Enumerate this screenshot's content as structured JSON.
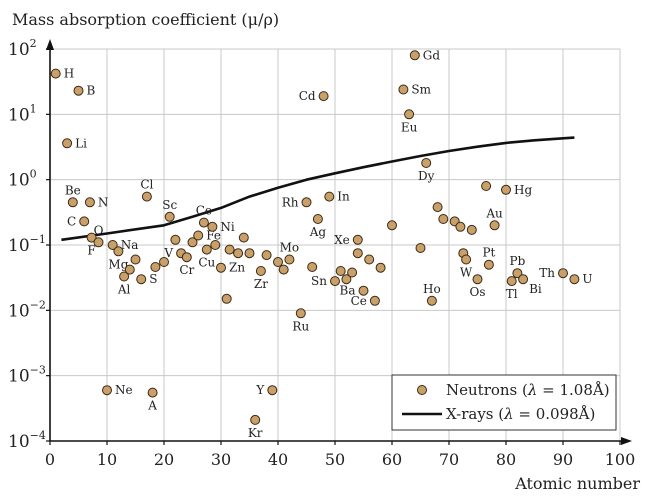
{
  "chart_data": {
    "type": "scatter",
    "title": "Mass absorption coefficient (μ/ρ)",
    "xlabel": "Atomic number",
    "ylabel": "Mass absorption coefficient (μ/ρ)",
    "xlim": [
      0,
      100
    ],
    "ylim": [
      0.0001,
      100
    ],
    "yscale": "log",
    "grid": true,
    "x_ticks": [
      0,
      10,
      20,
      30,
      40,
      50,
      60,
      70,
      80,
      90,
      100
    ],
    "y_ticks": [
      {
        "value": 0.0001,
        "base": "10",
        "exp": "−4"
      },
      {
        "value": 0.001,
        "base": "10",
        "exp": "−3"
      },
      {
        "value": 0.01,
        "base": "10",
        "exp": "−2"
      },
      {
        "value": 0.1,
        "base": "10",
        "exp": "−1"
      },
      {
        "value": 1,
        "base": "10",
        "exp": "0"
      },
      {
        "value": 10,
        "base": "10",
        "exp": "1"
      },
      {
        "value": 100,
        "base": "10",
        "exp": "2"
      }
    ],
    "legend_position": "bottom-right",
    "legend": {
      "neutrons_prefix": "Neutrons (",
      "neutrons_lambda": "λ",
      "neutrons_suffix": " = 1.08Å)",
      "xrays_prefix": "X-rays (",
      "xrays_lambda": "λ",
      "xrays_suffix": " = 0.098Å)"
    },
    "series": [
      {
        "name": "Neutrons (λ = 1.08Å)",
        "kind": "scatter",
        "color": "#c9a06a",
        "points": [
          {
            "z": 1,
            "y": 42,
            "label": "H",
            "pos": "right"
          },
          {
            "z": 3,
            "y": 3.6,
            "label": "Li",
            "pos": "right"
          },
          {
            "z": 4,
            "y": 0.45,
            "label": "Be",
            "pos": "above"
          },
          {
            "z": 5,
            "y": 23,
            "label": "B",
            "pos": "right"
          },
          {
            "z": 6,
            "y": 0.23,
            "label": "C",
            "pos": "left"
          },
          {
            "z": 7,
            "y": 0.45,
            "label": "N",
            "pos": "right"
          },
          {
            "z": 7.3,
            "y": 0.13,
            "label": "F",
            "pos": "below"
          },
          {
            "z": 8.5,
            "y": 0.11,
            "label": "O",
            "pos": "above"
          },
          {
            "z": 10,
            "y": 0.0006,
            "label": "Ne",
            "pos": "right"
          },
          {
            "z": 11,
            "y": 0.1,
            "label": "Na",
            "pos": "right"
          },
          {
            "z": 12,
            "y": 0.08,
            "label": "Mg",
            "pos": "below"
          },
          {
            "z": 13,
            "y": 0.033,
            "label": "Al",
            "pos": "below"
          },
          {
            "z": 14,
            "y": 0.042
          },
          {
            "z": 15,
            "y": 0.06
          },
          {
            "z": 16,
            "y": 0.03,
            "label": "S",
            "pos": "right"
          },
          {
            "z": 17,
            "y": 0.55,
            "label": "Cl",
            "pos": "above"
          },
          {
            "z": 18,
            "y": 0.00055,
            "label": "A",
            "pos": "below"
          },
          {
            "z": 18.5,
            "y": 0.046
          },
          {
            "z": 20,
            "y": 0.055
          },
          {
            "z": 21,
            "y": 0.27,
            "label": "Sc",
            "pos": "above"
          },
          {
            "z": 22,
            "y": 0.12
          },
          {
            "z": 23,
            "y": 0.075,
            "label": "V",
            "pos": "left"
          },
          {
            "z": 24,
            "y": 0.065,
            "label": "Cr",
            "pos": "below"
          },
          {
            "z": 25,
            "y": 0.11
          },
          {
            "z": 26,
            "y": 0.14,
            "label": "Fe",
            "pos": "right"
          },
          {
            "z": 27,
            "y": 0.22,
            "label": "Ce",
            "pos": "above"
          },
          {
            "z": 27.5,
            "y": 0.085,
            "label": "Cu",
            "pos": "below"
          },
          {
            "z": 28.5,
            "y": 0.19,
            "label": "Ni",
            "pos": "right"
          },
          {
            "z": 29,
            "y": 0.1
          },
          {
            "z": 30,
            "y": 0.045,
            "label": "Zn",
            "pos": "right"
          },
          {
            "z": 31,
            "y": 0.015
          },
          {
            "z": 31.5,
            "y": 0.085
          },
          {
            "z": 33,
            "y": 0.075
          },
          {
            "z": 34,
            "y": 0.13
          },
          {
            "z": 35,
            "y": 0.075
          },
          {
            "z": 36,
            "y": 0.00021,
            "label": "Kr",
            "pos": "below"
          },
          {
            "z": 37,
            "y": 0.04,
            "label": "Zr",
            "pos": "below"
          },
          {
            "z": 38,
            "y": 0.07
          },
          {
            "z": 39,
            "y": 0.0006,
            "label": "Y",
            "pos": "left"
          },
          {
            "z": 40,
            "y": 0.055
          },
          {
            "z": 41,
            "y": 0.042
          },
          {
            "z": 42,
            "y": 0.06,
            "label": "Mo",
            "pos": "above"
          },
          {
            "z": 44,
            "y": 0.009,
            "label": "Ru",
            "pos": "below"
          },
          {
            "z": 45,
            "y": 0.45,
            "label": "Rh",
            "pos": "left"
          },
          {
            "z": 46,
            "y": 0.046
          },
          {
            "z": 47,
            "y": 0.25,
            "label": "Ag",
            "pos": "below"
          },
          {
            "z": 48,
            "y": 19,
            "label": "Cd",
            "pos": "left"
          },
          {
            "z": 49,
            "y": 0.55,
            "label": "In",
            "pos": "right"
          },
          {
            "z": 50,
            "y": 0.028,
            "label": "Sn",
            "pos": "left"
          },
          {
            "z": 51,
            "y": 0.04
          },
          {
            "z": 52,
            "y": 0.03
          },
          {
            "z": 53,
            "y": 0.038
          },
          {
            "z": 54,
            "y": 0.12,
            "label": "Xe",
            "pos": "left"
          },
          {
            "z": 54,
            "y": 0.075
          },
          {
            "z": 55,
            "y": 0.02,
            "label": "Ba",
            "pos": "left"
          },
          {
            "z": 56,
            "y": 0.06
          },
          {
            "z": 57,
            "y": 0.014,
            "label": "Ce",
            "pos": "left"
          },
          {
            "z": 58,
            "y": 0.045
          },
          {
            "z": 60,
            "y": 0.2
          },
          {
            "z": 62,
            "y": 24,
            "label": "Sm",
            "pos": "right"
          },
          {
            "z": 63,
            "y": 10,
            "label": "Eu",
            "pos": "below"
          },
          {
            "z": 64,
            "y": 80,
            "label": "Gd",
            "pos": "right"
          },
          {
            "z": 65,
            "y": 0.09
          },
          {
            "z": 66,
            "y": 1.8,
            "label": "Dy",
            "pos": "below"
          },
          {
            "z": 67,
            "y": 0.014,
            "label": "Ho",
            "pos": "above"
          },
          {
            "z": 68,
            "y": 0.38
          },
          {
            "z": 69,
            "y": 0.25
          },
          {
            "z": 71,
            "y": 0.23
          },
          {
            "z": 72,
            "y": 0.19
          },
          {
            "z": 72.5,
            "y": 0.075
          },
          {
            "z": 73,
            "y": 0.06,
            "label": "W",
            "pos": "below"
          },
          {
            "z": 74,
            "y": 0.17
          },
          {
            "z": 75,
            "y": 0.03,
            "label": "Os",
            "pos": "below"
          },
          {
            "z": 76.5,
            "y": 0.8
          },
          {
            "z": 77,
            "y": 0.05,
            "label": "Pt",
            "pos": "above"
          },
          {
            "z": 78,
            "y": 0.2,
            "label": "Au",
            "pos": "above"
          },
          {
            "z": 80,
            "y": 0.7,
            "label": "Hg",
            "pos": "right"
          },
          {
            "z": 81,
            "y": 0.028,
            "label": "Tl",
            "pos": "below"
          },
          {
            "z": 82,
            "y": 0.037,
            "label": "Pb",
            "pos": "above"
          },
          {
            "z": 83,
            "y": 0.03,
            "label": "Bi",
            "pos": "below-right"
          },
          {
            "z": 90,
            "y": 0.037,
            "label": "Th",
            "pos": "left"
          },
          {
            "z": 92,
            "y": 0.03,
            "label": "U",
            "pos": "right"
          }
        ]
      },
      {
        "name": "X-rays (λ = 0.098Å)",
        "kind": "line",
        "color": "#111111",
        "x": [
          2,
          10,
          20,
          25,
          30,
          35,
          40,
          45,
          50,
          55,
          60,
          65,
          70,
          75,
          80,
          85,
          90,
          92
        ],
        "y": [
          0.12,
          0.15,
          0.2,
          0.27,
          0.37,
          0.55,
          0.75,
          1.0,
          1.25,
          1.55,
          1.9,
          2.3,
          2.75,
          3.2,
          3.65,
          4.0,
          4.3,
          4.4
        ]
      }
    ]
  }
}
